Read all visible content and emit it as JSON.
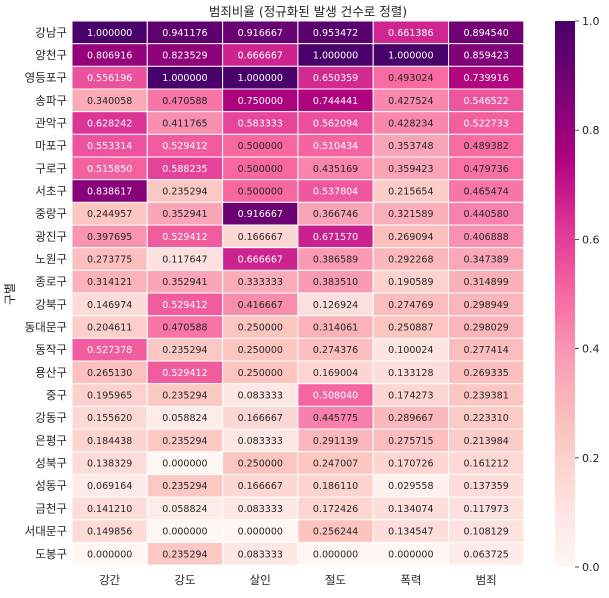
{
  "chart_data": {
    "type": "heatmap",
    "title": "범죄비율 (정규화된 발생 건수로 정렬)",
    "ylabel": "구별",
    "xlabel": "",
    "columns": [
      "강간",
      "강도",
      "살인",
      "절도",
      "폭력",
      "범죄"
    ],
    "rows": [
      "강남구",
      "양천구",
      "영등포구",
      "송파구",
      "관악구",
      "마포구",
      "구로구",
      "서초구",
      "중랑구",
      "광진구",
      "노원구",
      "종로구",
      "강북구",
      "동대문구",
      "동작구",
      "용산구",
      "중구",
      "강동구",
      "은평구",
      "성북구",
      "성동구",
      "금천구",
      "서대문구",
      "도봉구"
    ],
    "values": [
      [
        1.0,
        0.941176,
        0.916667,
        0.953472,
        0.661386,
        0.89454
      ],
      [
        0.806916,
        0.823529,
        0.666667,
        1.0,
        1.0,
        0.859423
      ],
      [
        0.556196,
        1.0,
        1.0,
        0.650359,
        0.493024,
        0.739916
      ],
      [
        0.340058,
        0.470588,
        0.75,
        0.744441,
        0.427524,
        0.546522
      ],
      [
        0.628242,
        0.411765,
        0.583333,
        0.562094,
        0.428234,
        0.522733
      ],
      [
        0.553314,
        0.529412,
        0.5,
        0.510434,
        0.353748,
        0.489382
      ],
      [
        0.51585,
        0.588235,
        0.5,
        0.435169,
        0.359423,
        0.479736
      ],
      [
        0.838617,
        0.235294,
        0.5,
        0.537804,
        0.215654,
        0.465474
      ],
      [
        0.244957,
        0.352941,
        0.916667,
        0.366746,
        0.321589,
        0.44058
      ],
      [
        0.397695,
        0.529412,
        0.166667,
        0.67157,
        0.269094,
        0.406888
      ],
      [
        0.273775,
        0.117647,
        0.666667,
        0.386589,
        0.292268,
        0.347389
      ],
      [
        0.314121,
        0.352941,
        0.333333,
        0.38351,
        0.190589,
        0.314899
      ],
      [
        0.146974,
        0.529412,
        0.416667,
        0.126924,
        0.274769,
        0.298949
      ],
      [
        0.204611,
        0.470588,
        0.25,
        0.314061,
        0.250887,
        0.298029
      ],
      [
        0.527378,
        0.235294,
        0.25,
        0.274376,
        0.100024,
        0.277414
      ],
      [
        0.26513,
        0.529412,
        0.25,
        0.169004,
        0.133128,
        0.269335
      ],
      [
        0.195965,
        0.235294,
        0.083333,
        0.50804,
        0.174273,
        0.239381
      ],
      [
        0.15562,
        0.058824,
        0.166667,
        0.445775,
        0.289667,
        0.22331
      ],
      [
        0.184438,
        0.235294,
        0.083333,
        0.291139,
        0.275715,
        0.213984
      ],
      [
        0.138329,
        0.0,
        0.25,
        0.247007,
        0.170726,
        0.161212
      ],
      [
        0.069164,
        0.235294,
        0.166667,
        0.18611,
        0.029558,
        0.137359
      ],
      [
        0.14121,
        0.058824,
        0.083333,
        0.172426,
        0.134074,
        0.117973
      ],
      [
        0.149856,
        0.0,
        0.0,
        0.256244,
        0.134547,
        0.108129
      ],
      [
        0.0,
        0.235294,
        0.083333,
        0.0,
        0.0,
        0.063725
      ]
    ],
    "annotation_format": "6 decimals",
    "colormap": "RdPu",
    "colorbar": {
      "range": [
        0,
        1
      ],
      "ticks": [
        0.0,
        0.2,
        0.4,
        0.6,
        0.8,
        1.0
      ],
      "tick_labels": [
        "0.0",
        "0.2",
        "0.4",
        "0.6",
        "0.8",
        "1.0"
      ]
    },
    "colors": [
      "#fff7f3",
      "#fde0dd",
      "#fcc5c0",
      "#fa9fb5",
      "#f768a1",
      "#dd3497",
      "#ae017e",
      "#7a0177",
      "#49006a"
    ]
  }
}
